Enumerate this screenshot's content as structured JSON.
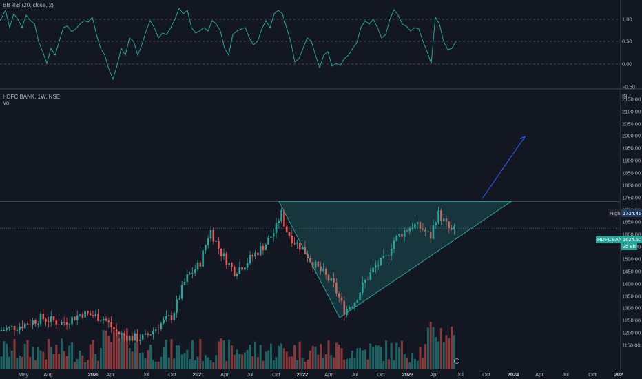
{
  "oscillator": {
    "legend": "BB %B (20, close, 2)",
    "levels": [
      "1.00",
      "0.50",
      "0.00",
      "−0.50"
    ],
    "line_color": "#26a69a"
  },
  "main": {
    "symbol_legend": "HDFC BANK, 1W, NSE",
    "vol_legend": "Vol",
    "currency": "INR",
    "price_levels": [
      "2150.00",
      "2100.00",
      "2050.00",
      "2000.00",
      "1950.00",
      "1900.00",
      "1850.00",
      "1800.00",
      "1750.00",
      "1700.00",
      "1650.00",
      "1600.00",
      "1550.00",
      "1500.00",
      "1450.00",
      "1400.00",
      "1350.00",
      "1300.00",
      "1250.00",
      "1200.00",
      "1150.00"
    ],
    "high_label": "High",
    "high_value": "1734.45",
    "symbol_tag": "HDFCBANK",
    "last_price": "1624.50",
    "countdown": "2d 8h",
    "up_color": "#26a69a",
    "down_color": "#ef5350",
    "pattern_color": "#26a69a",
    "arrow_color": "#2962ff"
  },
  "time_axis": [
    "May",
    "Aug",
    "2020",
    "Apr",
    "Jul",
    "Oct",
    "2021",
    "Apr",
    "Jul",
    "Oct",
    "2022",
    "Apr",
    "Jul",
    "Oct",
    "2023",
    "Apr",
    "Jul",
    "Oct",
    "2024",
    "Apr",
    "Jul",
    "Oct",
    "202"
  ]
}
